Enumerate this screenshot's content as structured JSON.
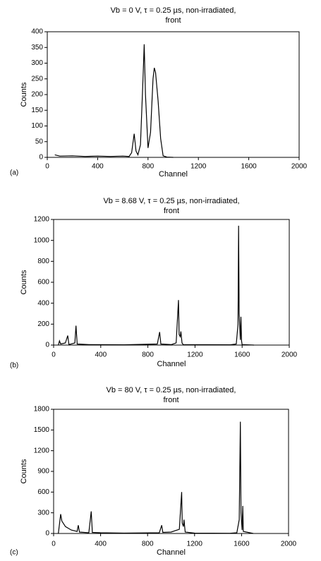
{
  "chart_data": [
    {
      "type": "line",
      "panel": "(a)",
      "title_lines": [
        "Vb = 0 V, τ = 0.25 µs, non-irradiated,",
        "front"
      ],
      "x_label": "Channel",
      "y_label": "Counts",
      "color": "#000000",
      "x": [
        60,
        100,
        200,
        300,
        400,
        500,
        600,
        650,
        670,
        690,
        705,
        720,
        740,
        760,
        770,
        780,
        800,
        820,
        840,
        850,
        860,
        880,
        900,
        920,
        950,
        1000
      ],
      "values": [
        8,
        4,
        5,
        3,
        4,
        3,
        4,
        3,
        15,
        75,
        20,
        8,
        40,
        250,
        360,
        200,
        30,
        80,
        250,
        285,
        270,
        180,
        60,
        5,
        1,
        0
      ],
      "xlim": [
        0,
        2000
      ],
      "xticks": [
        0,
        400,
        800,
        1200,
        1600,
        2000
      ],
      "ylim": [
        0,
        400
      ],
      "yticks": [
        0,
        50,
        100,
        150,
        200,
        250,
        300,
        350,
        400
      ]
    },
    {
      "type": "line",
      "panel": "(b)",
      "title_lines": [
        "Vb = 8.68 V, τ = 0.25 µs, non-irradiated,",
        "front"
      ],
      "x_label": "Channel",
      "y_label": "Counts",
      "color": "#000000",
      "x": [
        40,
        50,
        60,
        100,
        120,
        130,
        180,
        190,
        200,
        300,
        600,
        880,
        900,
        910,
        1000,
        1040,
        1060,
        1065,
        1075,
        1080,
        1090,
        1100,
        1500,
        1550,
        1565,
        1570,
        1575,
        1585,
        1590,
        1595,
        1600,
        1700
      ],
      "values": [
        0,
        40,
        10,
        20,
        90,
        5,
        20,
        185,
        10,
        5,
        3,
        10,
        125,
        10,
        5,
        20,
        430,
        100,
        80,
        130,
        20,
        5,
        3,
        10,
        200,
        1140,
        300,
        50,
        270,
        40,
        5,
        0
      ],
      "xlim": [
        0,
        2000
      ],
      "xticks": [
        0,
        400,
        800,
        1200,
        1600,
        2000
      ],
      "ylim": [
        0,
        1200
      ],
      "yticks": [
        0,
        200,
        400,
        600,
        800,
        1000,
        1200
      ]
    },
    {
      "type": "line",
      "panel": "(c)",
      "title_lines": [
        "Vb = 80 V, τ = 0.25 µs, non-irradiated,",
        "front"
      ],
      "x_label": "Channel",
      "y_label": "Counts",
      "color": "#000000",
      "x": [
        40,
        60,
        70,
        100,
        150,
        200,
        210,
        220,
        300,
        320,
        330,
        400,
        600,
        900,
        920,
        930,
        1000,
        1070,
        1090,
        1095,
        1105,
        1110,
        1120,
        1200,
        1500,
        1560,
        1580,
        1590,
        1595,
        1605,
        1610,
        1615,
        1700
      ],
      "values": [
        0,
        280,
        180,
        100,
        50,
        30,
        120,
        20,
        10,
        320,
        15,
        10,
        5,
        10,
        120,
        15,
        20,
        60,
        600,
        150,
        100,
        200,
        20,
        5,
        3,
        10,
        200,
        1620,
        300,
        50,
        400,
        30,
        0
      ],
      "xlim": [
        0,
        2000
      ],
      "xticks": [
        0,
        400,
        800,
        1200,
        1600,
        2000
      ],
      "ylim": [
        0,
        1800
      ],
      "yticks": [
        0,
        300,
        600,
        900,
        1200,
        1500,
        1800
      ]
    }
  ]
}
